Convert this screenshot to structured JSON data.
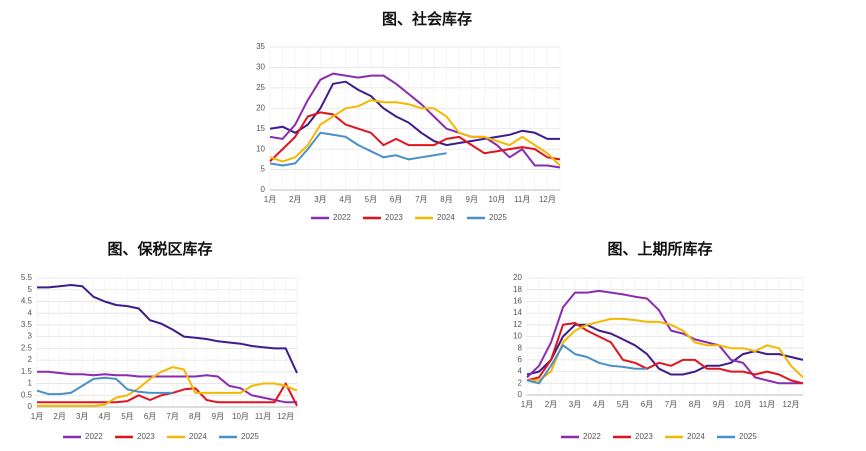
{
  "chart_data": [
    {
      "type": "line",
      "title": "图、社会库存",
      "categories": [
        "1月",
        null,
        "2月",
        null,
        "3月",
        null,
        "4月",
        null,
        "5月",
        null,
        "6月",
        null,
        "7月",
        null,
        "8月",
        null,
        "9月",
        null,
        "10月",
        null,
        "11月",
        null,
        "12月",
        null
      ],
      "ylim": [
        0,
        35
      ],
      "yticks": [
        0,
        5,
        10,
        15,
        20,
        25,
        30,
        35
      ],
      "grid": true,
      "series": [
        {
          "color": "#3d1c8c",
          "values": [
            15,
            15.5,
            14,
            16,
            20,
            26,
            26.5,
            24.5,
            23,
            20,
            18,
            16.5,
            14,
            12,
            11,
            11.5,
            12,
            12.5,
            13,
            13.5,
            14.5,
            14,
            12.5,
            12.5
          ]
        },
        {
          "name": "2022",
          "color": "#8a2bb0",
          "values": [
            13,
            12.5,
            16,
            22,
            27,
            28.5,
            28,
            27.5,
            28,
            28,
            26,
            23.5,
            21,
            18,
            15,
            14,
            13,
            13,
            11,
            8,
            10,
            6,
            6,
            5.5
          ]
        },
        {
          "name": "2023",
          "color": "#e0141e",
          "values": [
            7,
            10,
            13,
            18,
            19,
            18.5,
            16,
            15,
            14,
            11,
            12.5,
            11,
            11,
            11,
            12.5,
            13,
            11,
            9,
            9.5,
            10,
            10.5,
            10,
            8,
            7.5
          ]
        },
        {
          "name": "2024",
          "color": "#f5b800",
          "values": [
            8,
            7,
            8,
            11,
            16,
            18,
            20,
            20.5,
            22,
            21.5,
            21.5,
            21,
            20,
            20,
            18,
            14,
            13,
            13,
            12,
            11,
            13,
            11,
            9,
            6
          ]
        },
        {
          "name": "2025",
          "color": "#4a90c8",
          "values": [
            6.5,
            6,
            6.5,
            10,
            14,
            13.5,
            13,
            11,
            9.5,
            8,
            8.5,
            7.5,
            8,
            8.5,
            9,
            null,
            null,
            null,
            null,
            null,
            null,
            null,
            null,
            null
          ]
        }
      ]
    },
    {
      "type": "line",
      "title": "图、保税区库存",
      "categories": [
        "1月",
        null,
        "2月",
        null,
        "3月",
        null,
        "4月",
        null,
        "5月",
        null,
        "6月",
        null,
        "7月",
        null,
        "8月",
        null,
        "9月",
        null,
        "10月",
        null,
        "11月",
        null,
        "12月",
        null
      ],
      "ylim": [
        0,
        5.5
      ],
      "yticks": [
        0,
        0.5,
        1,
        1.5,
        2,
        2.5,
        3,
        3.5,
        4,
        4.5,
        5,
        5.5
      ],
      "grid": true,
      "series": [
        {
          "color": "#3d1c8c",
          "values": [
            5.1,
            5.1,
            5.15,
            5.2,
            5.15,
            4.7,
            4.5,
            4.35,
            4.3,
            4.2,
            3.7,
            3.55,
            3.3,
            3.0,
            2.95,
            2.9,
            2.8,
            2.75,
            2.7,
            2.6,
            2.55,
            2.5,
            2.5,
            1.45
          ]
        },
        {
          "name": "2022",
          "color": "#8a2bb0",
          "values": [
            1.5,
            1.5,
            1.45,
            1.4,
            1.4,
            1.35,
            1.4,
            1.35,
            1.35,
            1.3,
            1.3,
            1.3,
            1.3,
            1.3,
            1.3,
            1.35,
            1.3,
            0.9,
            0.8,
            0.5,
            0.4,
            0.3,
            0.2,
            0.2
          ]
        },
        {
          "name": "2023",
          "color": "#e0141e",
          "values": [
            0.2,
            0.2,
            0.2,
            0.2,
            0.2,
            0.2,
            0.2,
            0.2,
            0.25,
            0.5,
            0.3,
            0.5,
            0.6,
            0.75,
            0.8,
            0.3,
            0.2,
            0.2,
            0.2,
            0.2,
            0.2,
            0.2,
            1.0,
            0.05
          ]
        },
        {
          "name": "2024",
          "color": "#f5b800",
          "values": [
            0.05,
            0.05,
            0.05,
            0.05,
            0.05,
            0.05,
            0.1,
            0.4,
            0.5,
            0.8,
            1.2,
            1.5,
            1.7,
            1.6,
            0.6,
            0.6,
            0.6,
            0.6,
            0.6,
            0.9,
            1.0,
            1.0,
            0.9,
            0.7
          ]
        },
        {
          "name": "2025",
          "color": "#4a90c8",
          "values": [
            0.7,
            0.55,
            0.55,
            0.6,
            0.9,
            1.2,
            1.25,
            1.2,
            0.75,
            0.65,
            0.6,
            0.6,
            0.6,
            null,
            null,
            null,
            null,
            null,
            null,
            null,
            null,
            null,
            null,
            null
          ]
        }
      ]
    },
    {
      "type": "line",
      "title": "图、上期所库存",
      "categories": [
        "1月",
        null,
        "2月",
        null,
        "3月",
        null,
        "4月",
        null,
        "5月",
        null,
        "6月",
        null,
        "7月",
        null,
        "8月",
        null,
        "9月",
        null,
        "10月",
        null,
        "11月",
        null,
        "12月",
        null
      ],
      "ylim": [
        0,
        20
      ],
      "yticks": [
        0,
        2,
        4,
        6,
        8,
        10,
        12,
        14,
        16,
        18,
        20
      ],
      "grid": true,
      "series": [
        {
          "color": "#3d1c8c",
          "values": [
            3.5,
            4,
            6,
            10,
            12,
            12,
            11,
            10.5,
            9.5,
            8.5,
            7,
            4.5,
            3.5,
            3.5,
            4,
            5,
            5,
            5.5,
            7,
            7.5,
            7,
            7,
            6.5,
            6
          ]
        },
        {
          "name": "2022",
          "color": "#8a2bb0",
          "values": [
            3,
            5,
            9,
            15,
            17.5,
            17.5,
            17.8,
            17.5,
            17.2,
            16.8,
            16.5,
            14.5,
            11,
            10.5,
            9.5,
            9,
            8.5,
            6,
            5.5,
            3,
            2.5,
            2,
            2,
            2
          ]
        },
        {
          "name": "2023",
          "color": "#e0141e",
          "values": [
            2.5,
            3,
            6,
            12,
            12.3,
            11,
            10,
            9,
            6,
            5.5,
            4.5,
            5.5,
            5,
            6,
            6,
            4.5,
            4.5,
            4,
            4,
            3.5,
            4,
            3.5,
            2.5,
            2
          ]
        },
        {
          "name": "2024",
          "color": "#f5b800",
          "values": [
            2.5,
            2.5,
            4,
            9,
            11,
            12,
            12.5,
            13,
            13,
            12.8,
            12.5,
            12.5,
            12,
            11,
            9,
            8.5,
            8.5,
            8,
            8,
            7.5,
            8.5,
            8,
            5,
            3
          ]
        },
        {
          "name": "2025",
          "color": "#4a90c8",
          "values": [
            2.5,
            2,
            5,
            8.5,
            7,
            6.5,
            5.5,
            5,
            4.8,
            4.5,
            4.5,
            null,
            null,
            null,
            null,
            null,
            null,
            null,
            null,
            null,
            null,
            null,
            null,
            null
          ]
        }
      ]
    }
  ]
}
